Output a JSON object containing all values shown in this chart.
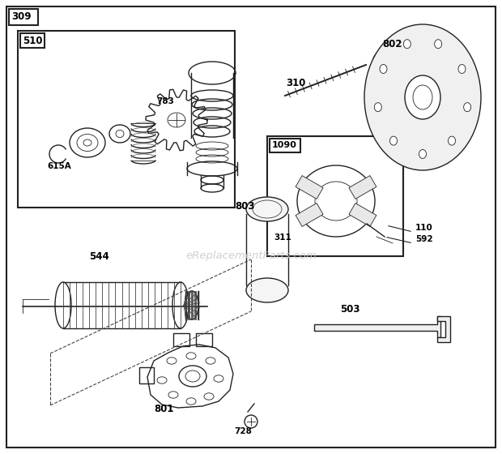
{
  "bg_color": "#ffffff",
  "border_color": "#000000",
  "watermark": "eReplacementParts.com",
  "figsize": [
    6.2,
    5.6
  ],
  "dpi": 100
}
